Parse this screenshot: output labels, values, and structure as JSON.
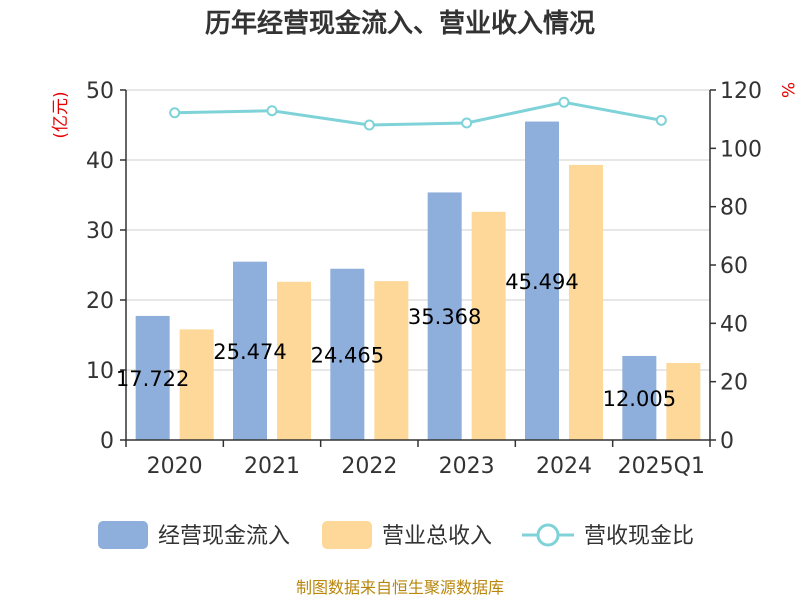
{
  "chart_data": {
    "type": "bar",
    "title": "历年经营现金流入、营业收入情况",
    "categories": [
      "2020",
      "2021",
      "2022",
      "2023",
      "2024",
      "2025Q1"
    ],
    "series": [
      {
        "name": "经营现金流入",
        "type": "bar",
        "axis": "left",
        "color": "#8eaedb",
        "values": [
          17.722,
          25.474,
          24.465,
          35.368,
          45.494,
          12.005
        ]
      },
      {
        "name": "营业总收入",
        "type": "bar",
        "axis": "left",
        "color": "#fdd899",
        "values": [
          15.8,
          22.6,
          22.7,
          32.6,
          39.3,
          11.0
        ]
      },
      {
        "name": "营收现金比",
        "type": "line",
        "axis": "right",
        "color": "#7fd3d8",
        "values": [
          112.2,
          112.9,
          108.0,
          108.7,
          115.8,
          109.6
        ]
      }
    ],
    "data_labels": [
      "17.722",
      "25.474",
      "24.465",
      "35.368",
      "45.494",
      "12.005"
    ],
    "y_left": {
      "label": "(亿元)",
      "min": 0,
      "max": 50,
      "ticks": [
        0,
        10,
        20,
        30,
        40,
        50
      ]
    },
    "y_right": {
      "label": "%",
      "min": 0,
      "max": 120,
      "ticks": [
        0,
        20,
        40,
        60,
        80,
        100,
        120
      ]
    },
    "grid": true,
    "legend_position": "bottom"
  },
  "footer": "制图数据来自恒生聚源数据库"
}
